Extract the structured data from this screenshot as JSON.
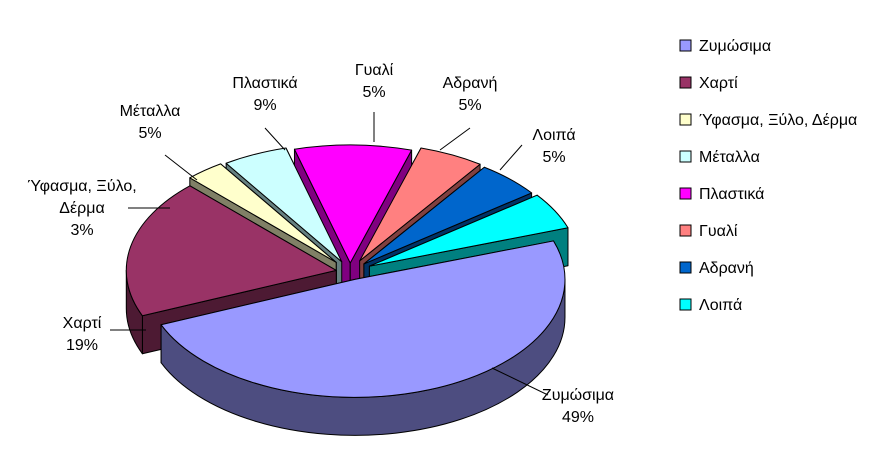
{
  "chart_data": {
    "type": "pie",
    "style": "3d-exploded",
    "title": "",
    "legend_position": "right",
    "slices": [
      {
        "label": "Ζυμώσιμα",
        "value": 49,
        "display": "49%",
        "color": "#9999ff",
        "side_color": "#4d4d80",
        "chart_label": [
          "Ζυμώσιμα",
          "49%"
        ]
      },
      {
        "label": "Χαρτί",
        "value": 19,
        "display": "19%",
        "color": "#993366",
        "side_color": "#4d1a33",
        "chart_label": [
          "Χαρτί",
          "19%"
        ]
      },
      {
        "label": "Ύφασμα, Ξύλο, Δέρμα",
        "value": 3,
        "display": "3%",
        "color": "#ffffcc",
        "side_color": "#808066",
        "chart_label": [
          "Ύφασμα, Ξύλο,",
          "Δέρμα",
          "3%"
        ]
      },
      {
        "label": "Μέταλλα",
        "value": 5,
        "display": "5%",
        "color": "#ccffff",
        "side_color": "#668080",
        "chart_label": [
          "Μέταλλα",
          "5%"
        ]
      },
      {
        "label": "Πλαστικά",
        "value": 9,
        "display": "9%",
        "color": "#ff00ff",
        "side_color": "#800080",
        "chart_label": [
          "Πλαστικά",
          "9%"
        ]
      },
      {
        "label": "Γυαλί",
        "value": 5,
        "display": "5%",
        "color": "#ff8080",
        "side_color": "#804040",
        "chart_label": [
          "Γυαλί",
          "5%"
        ]
      },
      {
        "label": "Αδρανή",
        "value": 5,
        "display": "5%",
        "color": "#0066cc",
        "side_color": "#003366",
        "chart_label": [
          "Αδρανή",
          "5%"
        ]
      },
      {
        "label": "Λοιπά",
        "value": 5,
        "display": "5%",
        "color": "#00ffff",
        "side_color": "#008080",
        "chart_label": [
          "Λοιπά",
          "5%"
        ]
      }
    ],
    "legend": [
      "Ζυμώσιμα",
      "Χαρτί",
      "Ύφασμα, Ξύλο, Δέρμα",
      "Μέταλλα",
      "Πλαστικά",
      "Γυαλί",
      "Αδρανή",
      "Λοιπά"
    ]
  }
}
